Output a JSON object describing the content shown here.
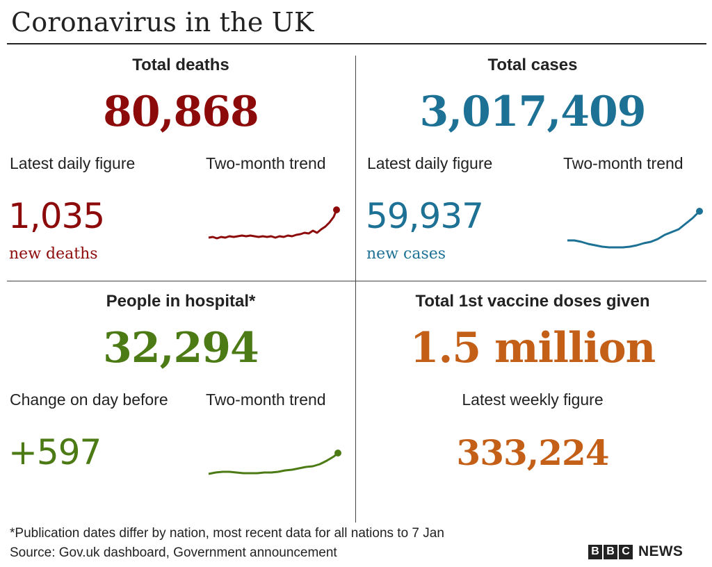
{
  "header": {
    "title": "Coronavirus in the UK"
  },
  "deaths": {
    "heading": "Total deaths",
    "total": "80,868",
    "daily_label": "Latest daily figure",
    "trend_label": "Two-month trend",
    "daily_value": "1,035",
    "daily_unit": "new deaths",
    "color": "#8c0a0a"
  },
  "cases": {
    "heading": "Total cases",
    "total": "3,017,409",
    "daily_label": "Latest daily figure",
    "trend_label": "Two-month trend",
    "daily_value": "59,937",
    "daily_unit": "new cases",
    "color": "#1d7195"
  },
  "hospital": {
    "heading": "People in hospital*",
    "total": "32,294",
    "daily_label": "Change on day before",
    "trend_label": "Two-month trend",
    "daily_value": "+597",
    "color": "#4c7a14"
  },
  "vaccine": {
    "heading": "Total 1st vaccine doses given",
    "total": "1.5 million",
    "weekly_label": "Latest weekly figure",
    "weekly_value": "333,224",
    "color": "#c45f18"
  },
  "footer": {
    "footnote": "*Publication dates differ by nation, most recent data for all nations to 7 Jan",
    "source": "Source: Gov.uk dashboard, Government announcement",
    "logo_letters": [
      "B",
      "B",
      "C"
    ],
    "logo_word": "NEWS"
  }
}
